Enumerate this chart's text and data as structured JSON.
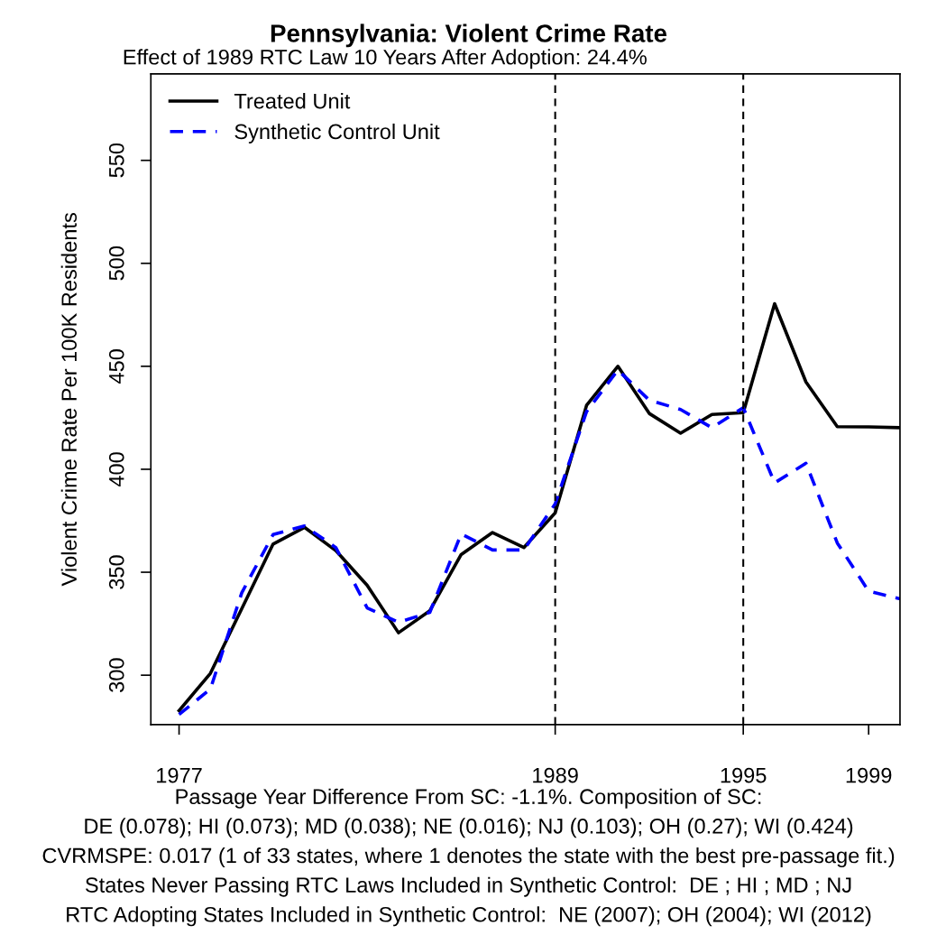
{
  "chart_data": {
    "type": "line",
    "title": "Pennsylvania: Violent Crime Rate",
    "subtitle": "Effect of 1989 RTC Law 10 Years After Adoption: 24.4%",
    "ylabel": "Violent Crime Rate Per 100K Residents",
    "x": [
      1977,
      1978,
      1979,
      1980,
      1981,
      1982,
      1983,
      1984,
      1985,
      1986,
      1987,
      1988,
      1989,
      1990,
      1991,
      1992,
      1993,
      1994,
      1995,
      1996,
      1997,
      1998,
      1999,
      2000
    ],
    "series": [
      {
        "name": "Treated Unit",
        "color": "#000000",
        "line_style": "solid",
        "values": [
          282.8,
          300.9,
          332.3,
          363.7,
          371.8,
          360.5,
          343.7,
          320.6,
          331.3,
          358.6,
          369.3,
          362.0,
          378.8,
          431.0,
          450.0,
          427.1,
          417.5,
          426.6,
          427.5,
          480.4,
          442.4,
          420.7,
          420.6,
          420.2
        ]
      },
      {
        "name": "Synthetic Control Unit",
        "color": "#0000ff",
        "line_style": "dashed",
        "values": [
          280.9,
          293.3,
          340.0,
          368.3,
          372.5,
          362.0,
          332.7,
          325.7,
          330.5,
          368.6,
          360.8,
          360.8,
          383.2,
          428.0,
          448.2,
          433.6,
          429.0,
          420.2,
          429.9,
          393.4,
          402.9,
          364.2,
          340.8,
          337.1
        ]
      }
    ],
    "xlim": [
      1976.1,
      2000
    ],
    "xticks": [
      1977,
      1989,
      1995,
      1999
    ],
    "ylim": [
      276,
      592
    ],
    "yticks": [
      300,
      350,
      400,
      450,
      500,
      550
    ],
    "ref_lines": [
      {
        "axis": "x",
        "value": 1989,
        "color": "#000000",
        "line_style": "dashed"
      },
      {
        "axis": "x",
        "value": 1995,
        "color": "#000000",
        "line_style": "dashed"
      }
    ],
    "legend": "top left",
    "grid": false,
    "annotations": [
      "Passage Year Difference From SC: -1.1%. Composition of SC:",
      "DE (0.078); HI (0.073); MD (0.038); NE (0.016); NJ (0.103); OH (0.27); WI (0.424)",
      "CVRMSPE: 0.017 (1 of 33 states, where 1 denotes the state with the best pre-passage fit.)",
      "States Never Passing RTC Laws Included in Synthetic Control:  DE ; HI ; MD ; NJ",
      "RTC Adopting States Included in Synthetic Control:  NE (2007); OH (2004); WI (2012)"
    ]
  }
}
